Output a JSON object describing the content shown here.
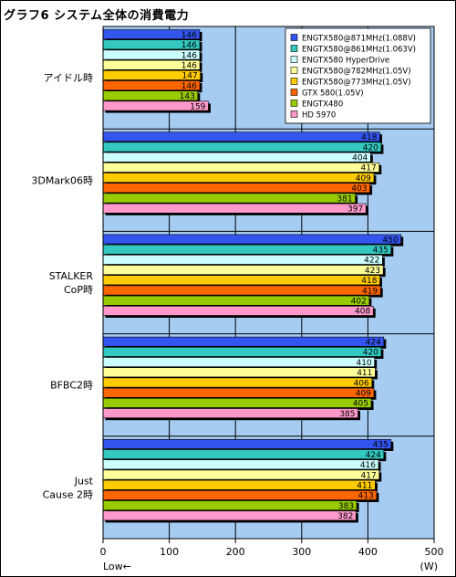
{
  "title": "グラフ6 システム全体の消費電力",
  "chart_data": {
    "type": "bar",
    "orientation": "horizontal",
    "title": "グラフ6 システム全体の消費電力",
    "xlabel_left": "Low←",
    "unit": "(W)",
    "xlim": [
      0,
      500
    ],
    "xticks": [
      "0",
      "100",
      "200",
      "300",
      "400",
      "500"
    ],
    "grid": true,
    "legend_position": "top-right",
    "categories": [
      [
        "アイドル時"
      ],
      [
        "3DMark06時"
      ],
      [
        "STALKER",
        "CoP時"
      ],
      [
        "BFBC2時"
      ],
      [
        "Just",
        "Cause 2時"
      ]
    ],
    "series": [
      {
        "name": "ENGTX580@871MHz(1.088V)",
        "color": "#3355ee",
        "values": [
          146,
          418,
          450,
          424,
          435
        ]
      },
      {
        "name": "ENGTX580@861MHz(1.063V)",
        "color": "#33c9c0",
        "values": [
          146,
          420,
          435,
          420,
          424
        ]
      },
      {
        "name": "ENGTX580 HyperDrive",
        "color": "#ccffff",
        "values": [
          146,
          404,
          422,
          410,
          416
        ]
      },
      {
        "name": "ENGTX580@782MHz(1.05V)",
        "color": "#ffff99",
        "values": [
          146,
          417,
          423,
          411,
          417
        ]
      },
      {
        "name": "ENGTX580@773MHz(1.05V)",
        "color": "#ffcc00",
        "values": [
          147,
          409,
          418,
          406,
          411
        ]
      },
      {
        "name": "GTX 580(1.05V)",
        "color": "#ff6600",
        "values": [
          146,
          403,
          419,
          409,
          413
        ]
      },
      {
        "name": "ENGTX480",
        "color": "#99cc00",
        "values": [
          143,
          381,
          402,
          405,
          383
        ]
      },
      {
        "name": "HD 5970",
        "color": "#ff99cc",
        "values": [
          159,
          397,
          408,
          385,
          382
        ]
      }
    ]
  }
}
